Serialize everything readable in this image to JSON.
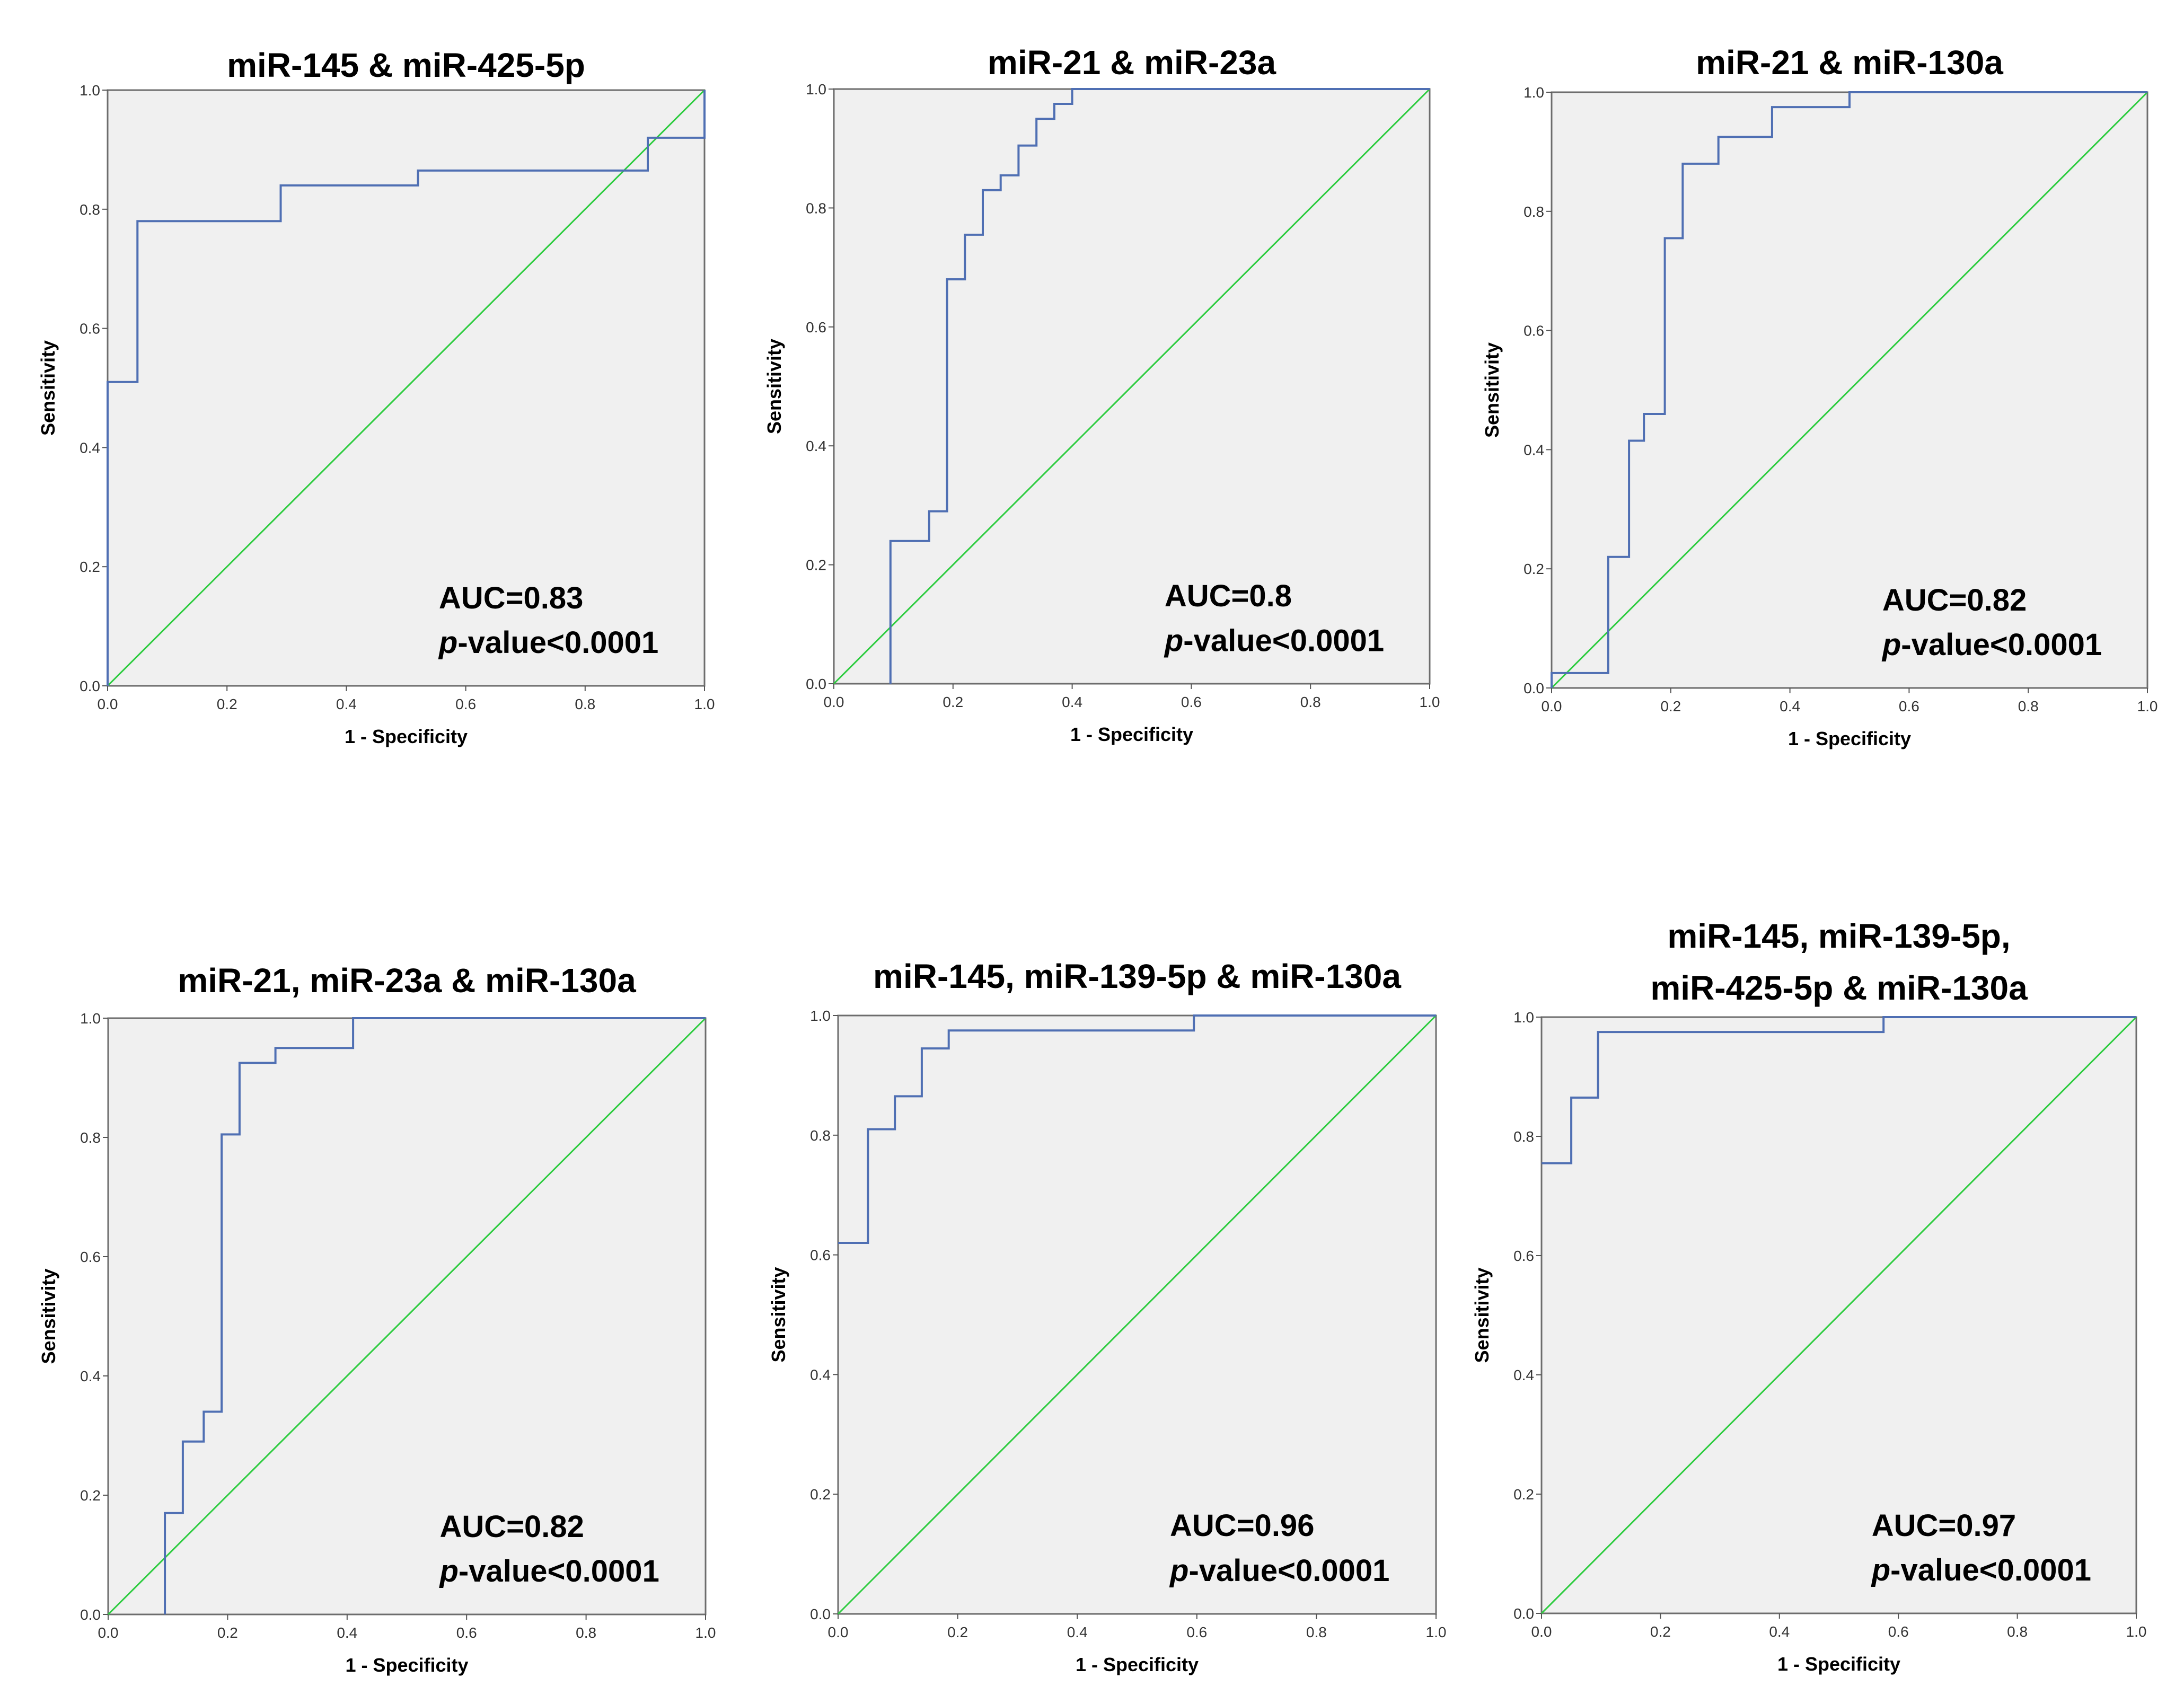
{
  "chart_data": [
    {
      "type": "line",
      "title": "miR-145 & miR-425-5p",
      "title_lines": [
        "miR-145 & miR-425-5p"
      ],
      "xlabel": "1 - Specificity",
      "ylabel": "Sensitivity",
      "xlim": [
        0,
        1
      ],
      "ylim": [
        0,
        1
      ],
      "ticks": [
        "0.0",
        "0.2",
        "0.4",
        "0.6",
        "0.8",
        "1.0"
      ],
      "auc_label": "AUC=0.83",
      "p_letter": "p",
      "p_rest": "-value<0.0001",
      "roc_curve": [
        [
          0,
          0
        ],
        [
          0,
          0.51
        ],
        [
          0.05,
          0.51
        ],
        [
          0.05,
          0.78
        ],
        [
          0.29,
          0.78
        ],
        [
          0.29,
          0.84
        ],
        [
          0.52,
          0.84
        ],
        [
          0.52,
          0.865
        ],
        [
          0.905,
          0.865
        ],
        [
          0.905,
          0.92
        ],
        [
          1,
          0.92
        ],
        [
          1,
          1
        ]
      ],
      "reference_line": [
        [
          0,
          0
        ],
        [
          1,
          1
        ]
      ],
      "roc_color": "#4f6fb3",
      "ref_color": "#2ecc40"
    },
    {
      "type": "line",
      "title": "miR-21 & miR-23a",
      "title_lines": [
        "miR-21 & miR-23a"
      ],
      "xlabel": "1 - Specificity",
      "ylabel": "Sensitivity",
      "xlim": [
        0,
        1
      ],
      "ylim": [
        0,
        1
      ],
      "ticks": [
        "0.0",
        "0.2",
        "0.4",
        "0.6",
        "0.8",
        "1.0"
      ],
      "auc_label": "AUC=0.8",
      "p_letter": "p",
      "p_rest": "-value<0.0001",
      "roc_curve": [
        [
          0.095,
          0
        ],
        [
          0.095,
          0.24
        ],
        [
          0.16,
          0.24
        ],
        [
          0.16,
          0.29
        ],
        [
          0.19,
          0.29
        ],
        [
          0.19,
          0.68
        ],
        [
          0.22,
          0.68
        ],
        [
          0.22,
          0.755
        ],
        [
          0.25,
          0.755
        ],
        [
          0.25,
          0.83
        ],
        [
          0.28,
          0.83
        ],
        [
          0.28,
          0.855
        ],
        [
          0.31,
          0.855
        ],
        [
          0.31,
          0.905
        ],
        [
          0.34,
          0.905
        ],
        [
          0.34,
          0.95
        ],
        [
          0.37,
          0.95
        ],
        [
          0.37,
          0.975
        ],
        [
          0.4,
          0.975
        ],
        [
          0.4,
          1
        ],
        [
          1,
          1
        ]
      ],
      "reference_line": [
        [
          0,
          0
        ],
        [
          1,
          1
        ]
      ],
      "roc_color": "#4f6fb3",
      "ref_color": "#2ecc40"
    },
    {
      "type": "line",
      "title": "miR-21 & miR-130a",
      "title_lines": [
        "miR-21 & miR-130a"
      ],
      "xlabel": "1 - Specificity",
      "ylabel": "Sensitivity",
      "xlim": [
        0,
        1
      ],
      "ylim": [
        0,
        1
      ],
      "ticks": [
        "0.0",
        "0.2",
        "0.4",
        "0.6",
        "0.8",
        "1.0"
      ],
      "auc_label": "AUC=0.82",
      "p_letter": "p",
      "p_rest": "-value<0.0001",
      "roc_curve": [
        [
          0,
          0
        ],
        [
          0,
          0.025
        ],
        [
          0.095,
          0.025
        ],
        [
          0.095,
          0.22
        ],
        [
          0.13,
          0.22
        ],
        [
          0.13,
          0.415
        ],
        [
          0.155,
          0.415
        ],
        [
          0.155,
          0.46
        ],
        [
          0.19,
          0.46
        ],
        [
          0.19,
          0.755
        ],
        [
          0.22,
          0.755
        ],
        [
          0.22,
          0.88
        ],
        [
          0.28,
          0.88
        ],
        [
          0.28,
          0.925
        ],
        [
          0.37,
          0.925
        ],
        [
          0.37,
          0.975
        ],
        [
          0.5,
          0.975
        ],
        [
          0.5,
          1
        ],
        [
          1,
          1
        ]
      ],
      "reference_line": [
        [
          0,
          0
        ],
        [
          1,
          1
        ]
      ],
      "roc_color": "#4f6fb3",
      "ref_color": "#2ecc40"
    },
    {
      "type": "line",
      "title": "miR-21, miR-23a & miR-130a",
      "title_lines": [
        "miR-21, miR-23a & miR-130a"
      ],
      "xlabel": "1 - Specificity",
      "ylabel": "Sensitivity",
      "xlim": [
        0,
        1
      ],
      "ylim": [
        0,
        1
      ],
      "ticks": [
        "0.0",
        "0.2",
        "0.4",
        "0.6",
        "0.8",
        "1.0"
      ],
      "auc_label": "AUC=0.82",
      "p_letter": "p",
      "p_rest": "-value<0.0001",
      "roc_curve": [
        [
          0.095,
          0
        ],
        [
          0.095,
          0.17
        ],
        [
          0.125,
          0.17
        ],
        [
          0.125,
          0.29
        ],
        [
          0.16,
          0.29
        ],
        [
          0.16,
          0.34
        ],
        [
          0.19,
          0.34
        ],
        [
          0.19,
          0.805
        ],
        [
          0.22,
          0.805
        ],
        [
          0.22,
          0.925
        ],
        [
          0.28,
          0.925
        ],
        [
          0.28,
          0.95
        ],
        [
          0.41,
          0.95
        ],
        [
          0.41,
          1
        ],
        [
          1,
          1
        ]
      ],
      "reference_line": [
        [
          0,
          0
        ],
        [
          1,
          1
        ]
      ],
      "roc_color": "#4f6fb3",
      "ref_color": "#2ecc40"
    },
    {
      "type": "line",
      "title": "miR-145, miR-139-5p & miR-130a",
      "title_lines": [
        "miR-145, miR-139-5p & miR-130a"
      ],
      "xlabel": "1 - Specificity",
      "ylabel": "Sensitivity",
      "xlim": [
        0,
        1
      ],
      "ylim": [
        0,
        1
      ],
      "ticks": [
        "0.0",
        "0.2",
        "0.4",
        "0.6",
        "0.8",
        "1.0"
      ],
      "auc_label": "AUC=0.96",
      "p_letter": "p",
      "p_rest": "-value<0.0001",
      "roc_curve": [
        [
          0,
          0.62
        ],
        [
          0.05,
          0.62
        ],
        [
          0.05,
          0.81
        ],
        [
          0.095,
          0.81
        ],
        [
          0.095,
          0.865
        ],
        [
          0.14,
          0.865
        ],
        [
          0.14,
          0.945
        ],
        [
          0.185,
          0.945
        ],
        [
          0.185,
          0.975
        ],
        [
          0.595,
          0.975
        ],
        [
          0.595,
          1
        ],
        [
          1,
          1
        ]
      ],
      "reference_line": [
        [
          0,
          0
        ],
        [
          1,
          1
        ]
      ],
      "roc_color": "#4f6fb3",
      "ref_color": "#2ecc40"
    },
    {
      "type": "line",
      "title": "miR-145, miR-139-5p, miR-425-5p & miR-130a",
      "title_lines": [
        "miR-145, miR-139-5p,",
        "miR-425-5p & miR-130a"
      ],
      "xlabel": "1 - Specificity",
      "ylabel": "Sensitivity",
      "xlim": [
        0,
        1
      ],
      "ylim": [
        0,
        1
      ],
      "ticks": [
        "0.0",
        "0.2",
        "0.4",
        "0.6",
        "0.8",
        "1.0"
      ],
      "auc_label": "AUC=0.97",
      "p_letter": "p",
      "p_rest": "-value<0.0001",
      "roc_curve": [
        [
          0,
          0.755
        ],
        [
          0.05,
          0.755
        ],
        [
          0.05,
          0.865
        ],
        [
          0.095,
          0.865
        ],
        [
          0.095,
          0.975
        ],
        [
          0.575,
          0.975
        ],
        [
          0.575,
          1
        ],
        [
          1,
          1
        ]
      ],
      "reference_line": [
        [
          0,
          0
        ],
        [
          1,
          1
        ]
      ],
      "roc_color": "#4f6fb3",
      "ref_color": "#2ecc40"
    }
  ]
}
